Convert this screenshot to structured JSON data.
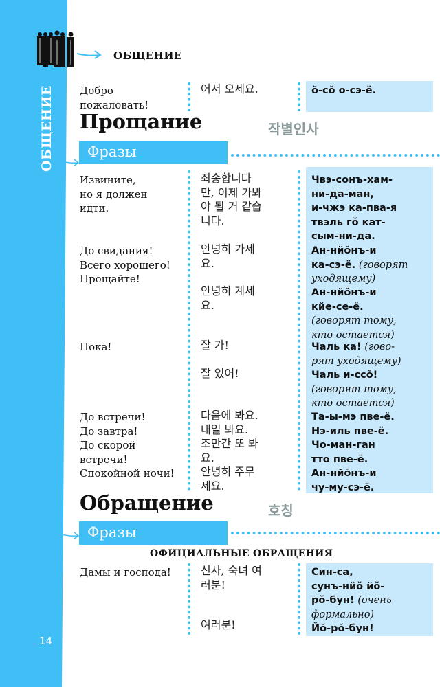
{
  "sidebar": {
    "vertical_label": "ОБЩЕНИЕ",
    "page_number": "14",
    "accent": "#40bff7"
  },
  "chapter": {
    "label": "ОБЩЕНИЕ",
    "icon": "people-group-illustration"
  },
  "welcome": {
    "ru": "Добро\nпожаловать!",
    "ko": "어서 오세요.",
    "tr": "ŏ-сŏ о-сэ-ё."
  },
  "farewell": {
    "title": "Прощание",
    "title_ko": "작별인사",
    "phrases_label": "Фразы",
    "ru": [
      "Извините,\nно я должен\nидти.",
      "До свидания!\nВсего хорошего!\nПрощайте!",
      "Пока!",
      "До встречи!\nДо завтра!\nДо скорой\nвстречи!\nСпокойной ночи!"
    ],
    "ko": [
      "죄송합니다\n만, 이제 가봐\n야 될 거 같습\n니다.",
      "안녕히 가세\n요.",
      "안녕히 계세\n요.",
      "잘 가!",
      "잘 있어!",
      "다음에 봐요.\n내일 봐요.\n조만간 또 봐\n요.\n안녕히 주무\n세요."
    ],
    "tr": [
      {
        "bold": "Чвэ-сонъ-хам-\nни-да-ман,\nи-чжэ ка-пва-я\nтвэль гŏ кат-\nсым-ни-да.",
        "note": ""
      },
      {
        "bold": "Ан-нйŏнъ-и\nка-сэ-ё.",
        "note": "(говорят\nуходящему)"
      },
      {
        "bold": "Ан-нйŏнъ-и\nкйе-се-ё.",
        "note": "\n(говорят тому,\nкто остается)"
      },
      {
        "bold": "Чаль ка!",
        "note": "(гово-\nрят уходящему)"
      },
      {
        "bold": "Чаль и-ссŏ!",
        "note": "\n(говорят тому,\nкто остается)"
      },
      {
        "bold": "Та-ы-мэ пве-ё.\nНэ-иль пве-ё.\nЧо-ман-ган\nтто пве-ё.\nАн-нйŏнъ-и\nчу-му-сэ-ё.",
        "note": ""
      }
    ]
  },
  "address": {
    "title": "Обращение",
    "title_ko": "호칭",
    "phrases_label": "Фразы",
    "subheading": "ОФИЦИАЛЬНЫЕ ОБРАЩЕНИЯ",
    "ru": "Дамы и господа!",
    "ko": [
      "신사, 숙녀 여\n러분!",
      "여러분!"
    ],
    "tr": [
      {
        "bold": "Син-са,\nсунъ-нйŏ йŏ-\nрŏ-бун!",
        "note": "(очень\nформально)"
      },
      {
        "bold": "Йŏ-рŏ-бун!",
        "note": ""
      }
    ]
  }
}
